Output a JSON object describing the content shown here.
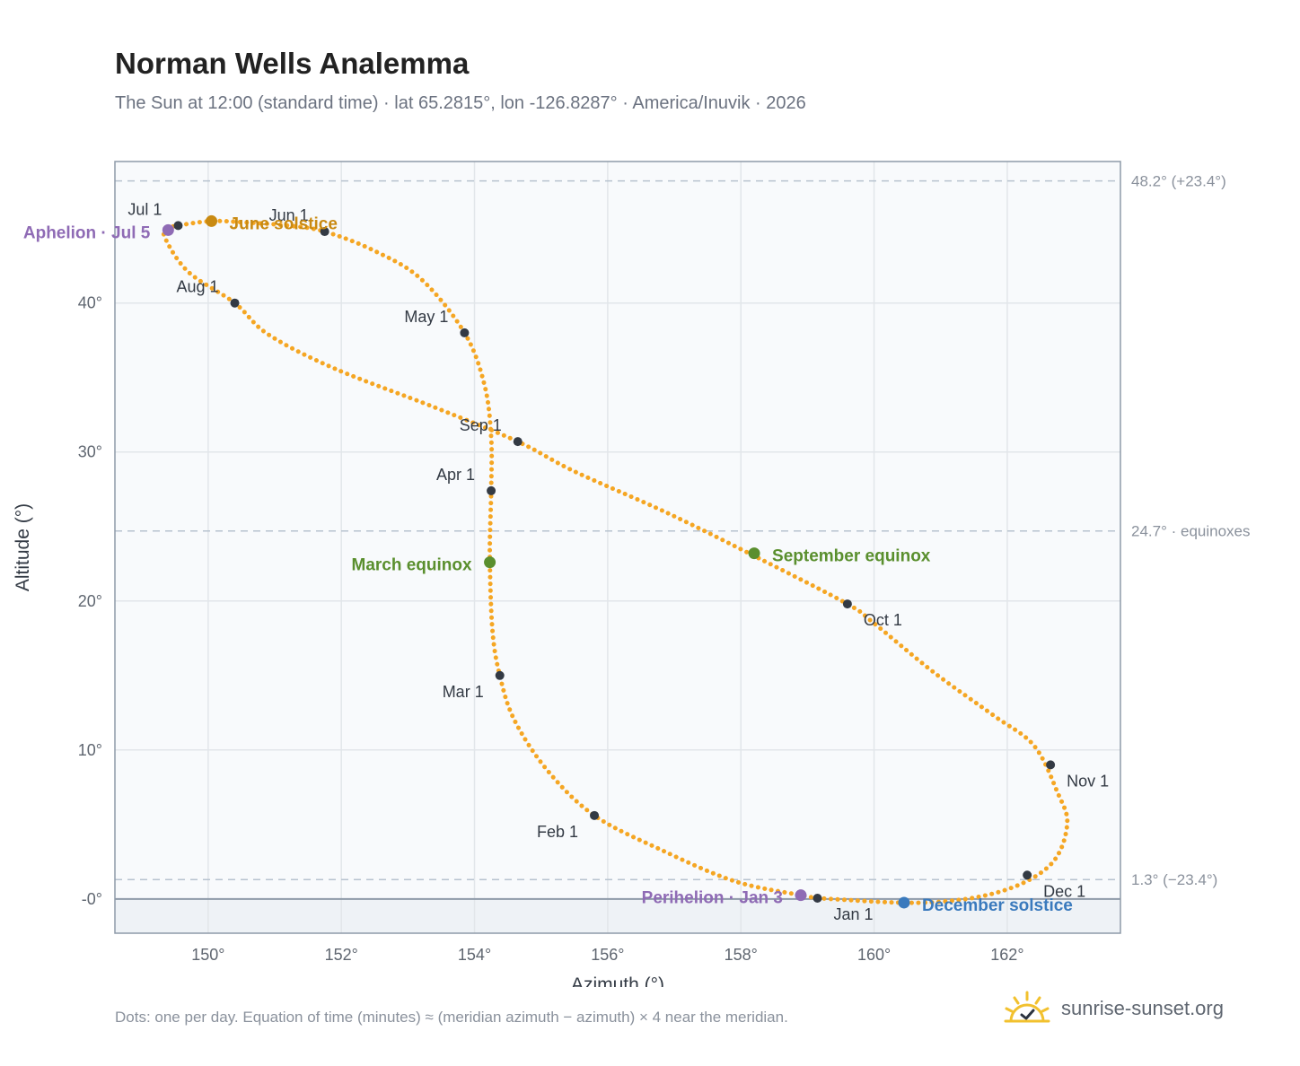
{
  "header": {
    "title": "Norman Wells Analemma",
    "subtitle": "The Sun at 12:00 (standard time) · lat 65.2815°, lon -126.8287° · America/Inuvik · 2026"
  },
  "footer": {
    "note": "Dots: one per day. Equation of time (minutes) ≈ (meridian azimuth − azimuth) × 4 near the meridian.",
    "brand": "sunrise-sunset.org",
    "brand_icon": "sunrise-logo-icon"
  },
  "colors": {
    "curve": "#f5a623",
    "month_marker": "#333a44",
    "solstice_june": "#c98a12",
    "solstice_december": "#3a7abd",
    "equinox": "#5a8f2e",
    "apsis": "#8f6bb5",
    "plot_bg": "#f8fafc",
    "below_horizon_bg": "#eef2f6",
    "axis": "#8e9aa8",
    "grid": "#e2e6ea",
    "ref_line": "#b7c3cf"
  },
  "chart_data": {
    "type": "scatter",
    "xlabel": "Azimuth (°)",
    "ylabel": "Altitude (°)",
    "xlim": [
      148.6,
      163.7
    ],
    "ylim": [
      -2.3,
      49.5
    ],
    "x_ticks": [
      150,
      152,
      154,
      156,
      158,
      160,
      162
    ],
    "x_tick_labels": [
      "150°",
      "152°",
      "154°",
      "156°",
      "158°",
      "160°",
      "162°"
    ],
    "y_ticks": [
      0,
      10,
      20,
      30,
      40
    ],
    "y_tick_labels": [
      "-0°",
      "10°",
      "20°",
      "30°",
      "40°"
    ],
    "grid": true,
    "horizon_altitude": 0,
    "reference_lines": [
      {
        "altitude": 48.2,
        "label": "48.2° (+23.4°)"
      },
      {
        "altitude": 24.7,
        "label": "24.7° · equinoxes"
      },
      {
        "altitude": 1.3,
        "label": "1.3° (−23.4°)"
      }
    ],
    "series": [
      {
        "points": [
          [
            159.15,
            0.05
          ],
          [
            160.75,
            -0.25
          ],
          [
            161.9,
            0.5
          ],
          [
            162.65,
            2.3
          ],
          [
            162.9,
            5.0
          ],
          [
            162.75,
            7.2
          ],
          [
            162.4,
            10.3
          ],
          [
            161.8,
            12.3
          ],
          [
            160.9,
            15.2
          ],
          [
            160.0,
            18.5
          ],
          [
            159.6,
            19.8
          ],
          [
            158.3,
            22.8
          ],
          [
            156.9,
            25.9
          ],
          [
            155.5,
            28.7
          ],
          [
            154.65,
            30.7
          ],
          [
            153.4,
            33.0
          ],
          [
            151.9,
            35.6
          ],
          [
            150.9,
            37.9
          ],
          [
            150.4,
            40.0
          ],
          [
            149.7,
            42.1
          ],
          [
            149.35,
            44.4
          ],
          [
            149.4,
            45.0
          ],
          [
            149.55,
            45.2
          ],
          [
            150.05,
            45.5
          ],
          [
            150.6,
            45.4
          ],
          [
            151.2,
            45.2
          ],
          [
            151.75,
            44.8
          ],
          [
            152.5,
            43.5
          ],
          [
            153.2,
            41.6
          ],
          [
            153.85,
            38.0
          ],
          [
            154.15,
            34.5
          ],
          [
            154.25,
            31.0
          ],
          [
            154.25,
            27.4
          ],
          [
            154.23,
            23.0
          ],
          [
            154.27,
            18.0
          ],
          [
            154.38,
            15.0
          ],
          [
            154.6,
            12.0
          ],
          [
            155.1,
            8.6
          ],
          [
            155.8,
            5.6
          ],
          [
            156.8,
            3.3
          ],
          [
            157.9,
            1.2
          ],
          [
            158.9,
            0.25
          ],
          [
            159.15,
            0.05
          ]
        ]
      }
    ],
    "month_markers": [
      {
        "label": "Jan 1",
        "x": 159.15,
        "y": 0.05,
        "anchor": "start",
        "dx": 18,
        "dy": 24
      },
      {
        "label": "Feb 1",
        "x": 155.8,
        "y": 5.6,
        "anchor": "end",
        "dx": -18,
        "dy": 24
      },
      {
        "label": "Mar 1",
        "x": 154.38,
        "y": 15.0,
        "anchor": "end",
        "dx": -18,
        "dy": 24
      },
      {
        "label": "Apr 1",
        "x": 154.25,
        "y": 27.4,
        "anchor": "end",
        "dx": -18,
        "dy": -12
      },
      {
        "label": "May 1",
        "x": 153.85,
        "y": 38.0,
        "anchor": "end",
        "dx": -18,
        "dy": -12
      },
      {
        "label": "Jun 1",
        "x": 151.75,
        "y": 44.8,
        "anchor": "end",
        "dx": -18,
        "dy": -12
      },
      {
        "label": "Jul 1",
        "x": 149.55,
        "y": 45.2,
        "anchor": "end",
        "dx": -18,
        "dy": -12
      },
      {
        "label": "Aug 1",
        "x": 150.4,
        "y": 40.0,
        "anchor": "end",
        "dx": -18,
        "dy": -12
      },
      {
        "label": "Sep 1",
        "x": 154.65,
        "y": 30.7,
        "anchor": "end",
        "dx": -18,
        "dy": -12
      },
      {
        "label": "Oct 1",
        "x": 159.6,
        "y": 19.8,
        "anchor": "start",
        "dx": 18,
        "dy": 24
      },
      {
        "label": "Nov 1",
        "x": 162.65,
        "y": 9.0,
        "anchor": "start",
        "dx": 18,
        "dy": 24
      },
      {
        "label": "Dec 1",
        "x": 162.3,
        "y": 1.6,
        "anchor": "start",
        "dx": 18,
        "dy": 24
      }
    ],
    "events": [
      {
        "label": "June solstice",
        "x": 150.05,
        "y": 45.5,
        "kind": "solstice_june",
        "anchor": "start",
        "dx": 20,
        "dy": 9
      },
      {
        "label": "December solstice",
        "x": 160.45,
        "y": -0.25,
        "kind": "solstice_december",
        "anchor": "start",
        "dx": 20,
        "dy": 9
      },
      {
        "label": "March equinox",
        "x": 154.23,
        "y": 22.6,
        "kind": "equinox",
        "anchor": "end",
        "dx": -20,
        "dy": 9
      },
      {
        "label": "September equinox",
        "x": 158.2,
        "y": 23.2,
        "kind": "equinox",
        "anchor": "start",
        "dx": 20,
        "dy": 9
      },
      {
        "label": "Aphelion · Jul 5",
        "x": 149.4,
        "y": 44.9,
        "kind": "apsis",
        "anchor": "end",
        "dx": -20,
        "dy": 9
      },
      {
        "label": "Perihelion · Jan 3",
        "x": 158.9,
        "y": 0.25,
        "kind": "apsis",
        "anchor": "end",
        "dx": -20,
        "dy": 9
      }
    ]
  }
}
